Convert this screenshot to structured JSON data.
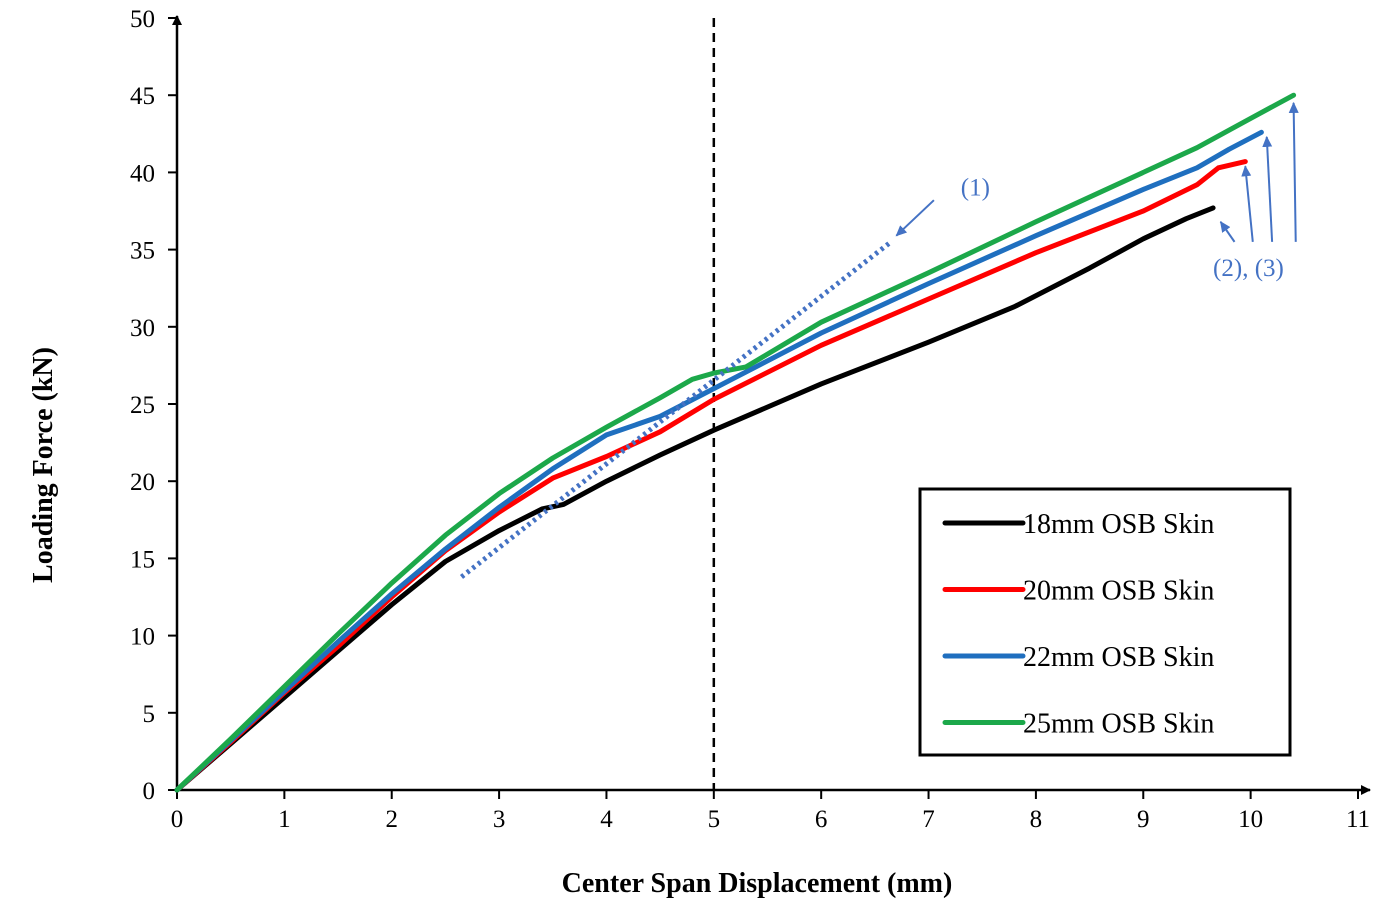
{
  "chart_data": {
    "type": "line",
    "xlabel": "Center Span Displacement (mm)",
    "ylabel": "Loading Force (kN)",
    "xlim": [
      0,
      11
    ],
    "ylim": [
      0,
      50
    ],
    "xticks": [
      0,
      1,
      2,
      3,
      4,
      5,
      6,
      7,
      8,
      9,
      10,
      11
    ],
    "yticks": [
      0,
      5,
      10,
      15,
      20,
      25,
      30,
      35,
      40,
      45,
      50
    ],
    "grid": false,
    "legend_position": "bottom-right",
    "reference_line": {
      "x": 5,
      "style": "dashed",
      "color": "#000000"
    },
    "series": [
      {
        "name": "18mm OSB Skin",
        "color": "#000000",
        "points": [
          [
            0,
            0
          ],
          [
            0.5,
            3.0
          ],
          [
            1,
            6.0
          ],
          [
            1.5,
            9.0
          ],
          [
            2,
            12.0
          ],
          [
            2.5,
            14.8
          ],
          [
            3,
            16.8
          ],
          [
            3.4,
            18.2
          ],
          [
            3.6,
            18.5
          ],
          [
            4,
            20.0
          ],
          [
            4.5,
            21.7
          ],
          [
            5,
            23.3
          ],
          [
            6,
            26.3
          ],
          [
            7,
            29.0
          ],
          [
            7.8,
            31.3
          ],
          [
            8.5,
            33.8
          ],
          [
            9,
            35.7
          ],
          [
            9.4,
            37.0
          ],
          [
            9.65,
            37.7
          ]
        ]
      },
      {
        "name": "20mm OSB Skin",
        "color": "#ff0000",
        "points": [
          [
            0,
            0
          ],
          [
            0.5,
            3.1
          ],
          [
            1,
            6.3
          ],
          [
            1.5,
            9.3
          ],
          [
            2,
            12.5
          ],
          [
            2.5,
            15.5
          ],
          [
            3,
            18.0
          ],
          [
            3.5,
            20.2
          ],
          [
            4,
            21.6
          ],
          [
            4.5,
            23.2
          ],
          [
            5,
            25.3
          ],
          [
            6,
            28.8
          ],
          [
            7,
            31.8
          ],
          [
            8,
            34.8
          ],
          [
            9,
            37.5
          ],
          [
            9.5,
            39.2
          ],
          [
            9.7,
            40.3
          ],
          [
            9.95,
            40.7
          ]
        ]
      },
      {
        "name": "22mm OSB Skin",
        "color": "#1f6fbf",
        "points": [
          [
            0,
            0
          ],
          [
            0.5,
            3.2
          ],
          [
            1,
            6.4
          ],
          [
            1.5,
            9.6
          ],
          [
            2,
            12.7
          ],
          [
            2.5,
            15.6
          ],
          [
            3,
            18.3
          ],
          [
            3.5,
            20.8
          ],
          [
            4,
            23.0
          ],
          [
            4.5,
            24.2
          ],
          [
            5,
            26.0
          ],
          [
            6,
            29.6
          ],
          [
            7,
            32.8
          ],
          [
            8,
            35.9
          ],
          [
            9,
            38.9
          ],
          [
            9.5,
            40.3
          ],
          [
            9.8,
            41.5
          ],
          [
            10.1,
            42.6
          ]
        ]
      },
      {
        "name": "25mm OSB Skin",
        "color": "#1ca84a",
        "points": [
          [
            0,
            0
          ],
          [
            0.5,
            3.3
          ],
          [
            1,
            6.7
          ],
          [
            1.5,
            10.1
          ],
          [
            2,
            13.4
          ],
          [
            2.5,
            16.5
          ],
          [
            3,
            19.2
          ],
          [
            3.5,
            21.5
          ],
          [
            4,
            23.5
          ],
          [
            4.5,
            25.4
          ],
          [
            4.8,
            26.6
          ],
          [
            5,
            27.0
          ],
          [
            5.3,
            27.4
          ],
          [
            6,
            30.3
          ],
          [
            7,
            33.5
          ],
          [
            8,
            36.8
          ],
          [
            9,
            40.0
          ],
          [
            9.5,
            41.6
          ],
          [
            10,
            43.5
          ],
          [
            10.4,
            45.0
          ]
        ]
      }
    ],
    "annotations": [
      {
        "label": "(1)",
        "color": "#4472c4",
        "dotted_line": [
          [
            2.65,
            13.8
          ],
          [
            6.65,
            35.5
          ]
        ],
        "arrow_from": [
          7.05,
          38.2
        ],
        "arrow_to": [
          6.7,
          35.9
        ],
        "text_at": [
          7.3,
          38.5
        ]
      },
      {
        "label": "(2), (3)",
        "color": "#4472c4",
        "text_at": [
          9.65,
          33.3
        ],
        "arrows": [
          {
            "from": [
              9.85,
              35.5
            ],
            "to": [
              9.72,
              36.8
            ]
          },
          {
            "from": [
              10.02,
              35.5
            ],
            "to": [
              9.95,
              40.4
            ]
          },
          {
            "from": [
              10.2,
              35.5
            ],
            "to": [
              10.15,
              42.3
            ]
          },
          {
            "from": [
              10.42,
              35.5
            ],
            "to": [
              10.4,
              44.5
            ]
          }
        ]
      }
    ]
  }
}
